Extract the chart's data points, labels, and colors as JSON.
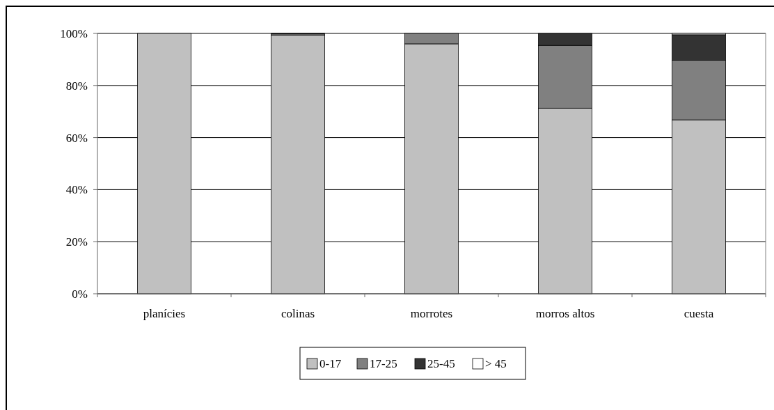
{
  "chart_data": {
    "type": "bar",
    "stacked": true,
    "categories": [
      "planícies",
      "colinas",
      "morrotes",
      "morros altos",
      "cuesta"
    ],
    "series": [
      {
        "name": "0-17",
        "color": "#c0c0c0",
        "values": [
          100,
          99.3,
          96,
          71.3,
          66.8
        ]
      },
      {
        "name": "17-25",
        "color": "#808080",
        "values": [
          0,
          0.5,
          4,
          24.1,
          22.9
        ]
      },
      {
        "name": "25-45",
        "color": "#333333",
        "values": [
          0,
          0.2,
          0,
          4.6,
          9.8
        ]
      },
      {
        "name": "> 45",
        "color": "#ffffff",
        "values": [
          0,
          0,
          0,
          0,
          0.5
        ]
      }
    ],
    "ylim": [
      0,
      100
    ],
    "yticks": [
      {
        "value": 0,
        "label": "0%"
      },
      {
        "value": 20,
        "label": "20%"
      },
      {
        "value": 40,
        "label": "40%"
      },
      {
        "value": 60,
        "label": "60%"
      },
      {
        "value": 80,
        "label": "80%"
      },
      {
        "value": 100,
        "label": "100%"
      }
    ],
    "grid": "y",
    "legend": "bottom"
  }
}
